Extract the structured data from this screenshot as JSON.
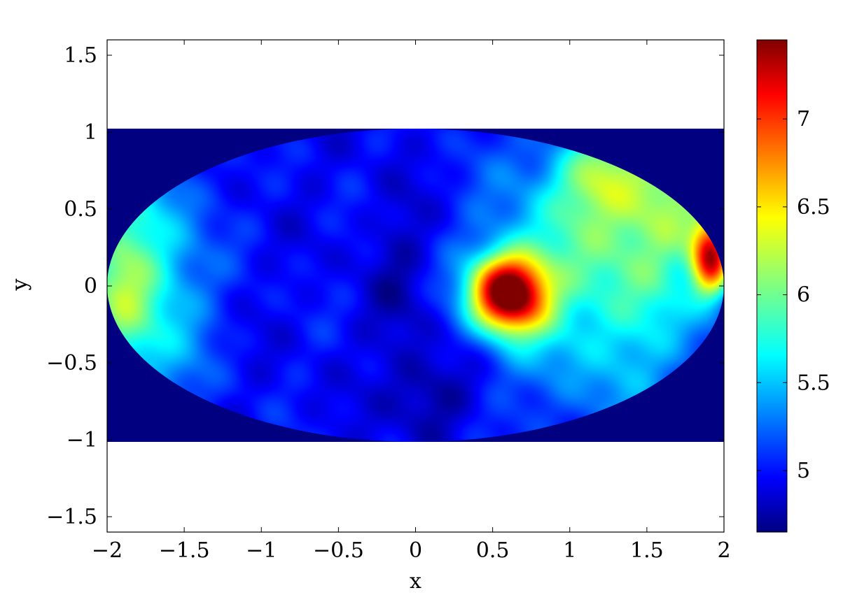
{
  "chart_data": {
    "type": "heatmap",
    "projection": "elliptical (Mollweide-like) map on a 2:1 ellipse",
    "xlabel": "x",
    "ylabel": "y",
    "xlim": [
      -2,
      2
    ],
    "ylim": [
      -1.6,
      1.6
    ],
    "xticks": [
      {
        "value": -2,
        "label": "−2"
      },
      {
        "value": -1.5,
        "label": "−1.5"
      },
      {
        "value": -1,
        "label": "−1"
      },
      {
        "value": -0.5,
        "label": "−0.5"
      },
      {
        "value": 0,
        "label": "0"
      },
      {
        "value": 0.5,
        "label": "0.5"
      },
      {
        "value": 1,
        "label": "1"
      },
      {
        "value": 1.5,
        "label": "1.5"
      },
      {
        "value": 2,
        "label": "2"
      }
    ],
    "yticks": [
      {
        "value": 1.5,
        "label": "1.5"
      },
      {
        "value": 1,
        "label": "1"
      },
      {
        "value": 0.5,
        "label": "0.5"
      },
      {
        "value": 0,
        "label": "0"
      },
      {
        "value": -0.5,
        "label": "−0.5"
      },
      {
        "value": -1,
        "label": "−1"
      },
      {
        "value": -1.5,
        "label": "−1.5"
      }
    ],
    "colorbar": {
      "colormap": "jet",
      "range": [
        4.65,
        7.45
      ],
      "ticks": [
        {
          "value": 5,
          "label": "5"
        },
        {
          "value": 5.5,
          "label": "5.5"
        },
        {
          "value": 6,
          "label": "6"
        },
        {
          "value": 6.5,
          "label": "6.5"
        },
        {
          "value": 7,
          "label": "7"
        }
      ]
    },
    "background_value": 4.65,
    "field": {
      "base_value": 5.0,
      "features": [
        {
          "x": 0.6,
          "y": -0.05,
          "amplitude": 2.45,
          "sx": 0.17,
          "sy": 0.17,
          "label": "main hot spot"
        },
        {
          "x": 1.92,
          "y": 0.18,
          "amplitude": 2.0,
          "sx": 0.09,
          "sy": 0.17,
          "label": "right-edge hot spot"
        },
        {
          "x": 0.85,
          "y": 0.1,
          "amplitude": 0.55,
          "sx": 0.35,
          "sy": 0.55
        },
        {
          "x": 1.45,
          "y": 0.2,
          "amplitude": 0.75,
          "sx": 0.35,
          "sy": 0.7
        },
        {
          "x": 1.2,
          "y": 0.7,
          "amplitude": 0.6,
          "sx": 0.2,
          "sy": 0.2
        },
        {
          "x": 1.65,
          "y": 0.5,
          "amplitude": 0.5,
          "sx": 0.2,
          "sy": 0.25
        },
        {
          "x": -1.9,
          "y": 0.0,
          "amplitude": 1.05,
          "sx": 0.2,
          "sy": 0.5
        },
        {
          "x": -1.55,
          "y": 0.0,
          "amplitude": 0.4,
          "sx": 0.2,
          "sy": 0.6
        },
        {
          "x": 0.1,
          "y": -0.7,
          "amplitude": -0.3,
          "sx": 0.2,
          "sy": 0.2
        },
        {
          "x": -0.1,
          "y": 0.05,
          "amplitude": -0.2,
          "sx": 0.15,
          "sy": 0.4
        }
      ]
    },
    "grid": false,
    "legend": "colorbar right"
  }
}
